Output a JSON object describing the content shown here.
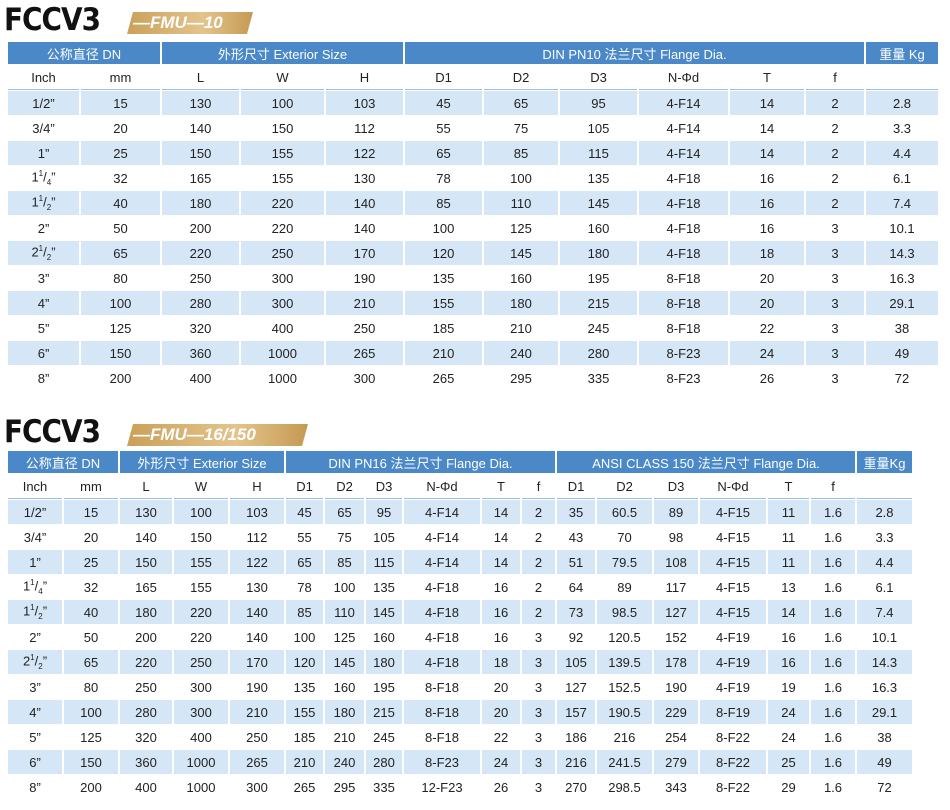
{
  "t1": {
    "model": "FCCV3",
    "variant": "—FMU—10",
    "groups": [
      "公称直径 DN",
      "外形尺寸 Exterior Size",
      "DIN PN10 法兰尺寸 Flange Dia.",
      "重量 Kg"
    ],
    "sub": [
      "Inch",
      "mm",
      "L",
      "W",
      "H",
      "D1",
      "D2",
      "D3",
      "N-Φd",
      "T",
      "f",
      ""
    ],
    "rows": [
      [
        "1/2”",
        "15",
        "130",
        "100",
        "103",
        "45",
        "65",
        "95",
        "4-F14",
        "14",
        "2",
        "2.8"
      ],
      [
        "3/4”",
        "20",
        "140",
        "150",
        "112",
        "55",
        "75",
        "105",
        "4-F14",
        "14",
        "2",
        "3.3"
      ],
      [
        "1”",
        "25",
        "150",
        "155",
        "122",
        "65",
        "85",
        "115",
        "4-F14",
        "14",
        "2",
        "4.4"
      ],
      [
        "1 1/4”",
        "32",
        "165",
        "155",
        "130",
        "78",
        "100",
        "135",
        "4-F18",
        "16",
        "2",
        "6.1"
      ],
      [
        "1 1/2”",
        "40",
        "180",
        "220",
        "140",
        "85",
        "110",
        "145",
        "4-F18",
        "16",
        "2",
        "7.4"
      ],
      [
        "2”",
        "50",
        "200",
        "220",
        "140",
        "100",
        "125",
        "160",
        "4-F18",
        "16",
        "3",
        "10.1"
      ],
      [
        "2 1/2”",
        "65",
        "220",
        "250",
        "170",
        "120",
        "145",
        "180",
        "4-F18",
        "18",
        "3",
        "14.3"
      ],
      [
        "3”",
        "80",
        "250",
        "300",
        "190",
        "135",
        "160",
        "195",
        "8-F18",
        "20",
        "3",
        "16.3"
      ],
      [
        "4”",
        "100",
        "280",
        "300",
        "210",
        "155",
        "180",
        "215",
        "8-F18",
        "20",
        "3",
        "29.1"
      ],
      [
        "5”",
        "125",
        "320",
        "400",
        "250",
        "185",
        "210",
        "245",
        "8-F18",
        "22",
        "3",
        "38"
      ],
      [
        "6”",
        "150",
        "360",
        "1000",
        "265",
        "210",
        "240",
        "280",
        "8-F23",
        "24",
        "3",
        "49"
      ],
      [
        "8”",
        "200",
        "400",
        "1000",
        "300",
        "265",
        "295",
        "335",
        "8-F23",
        "26",
        "3",
        "72"
      ]
    ]
  },
  "t2": {
    "model": "FCCV3",
    "variant": "—FMU—16/150",
    "groups": [
      "公称直径 DN",
      "外形尺寸 Exterior Size",
      "DIN PN16 法兰尺寸 Flange Dia.",
      "ANSI CLASS 150 法兰尺寸 Flange Dia.",
      "重量Kg"
    ],
    "sub": [
      "Inch",
      "mm",
      "L",
      "W",
      "H",
      "D1",
      "D2",
      "D3",
      "N-Φd",
      "T",
      "f",
      "D1",
      "D2",
      "D3",
      "N-Φd",
      "T",
      "f",
      ""
    ],
    "rows": [
      [
        "1/2”",
        "15",
        "130",
        "100",
        "103",
        "45",
        "65",
        "95",
        "4-F14",
        "14",
        "2",
        "35",
        "60.5",
        "89",
        "4-F15",
        "11",
        "1.6",
        "2.8"
      ],
      [
        "3/4”",
        "20",
        "140",
        "150",
        "112",
        "55",
        "75",
        "105",
        "4-F14",
        "14",
        "2",
        "43",
        "70",
        "98",
        "4-F15",
        "11",
        "1.6",
        "3.3"
      ],
      [
        "1”",
        "25",
        "150",
        "155",
        "122",
        "65",
        "85",
        "115",
        "4-F14",
        "14",
        "2",
        "51",
        "79.5",
        "108",
        "4-F15",
        "11",
        "1.6",
        "4.4"
      ],
      [
        "1 1/4”",
        "32",
        "165",
        "155",
        "130",
        "78",
        "100",
        "135",
        "4-F18",
        "16",
        "2",
        "64",
        "89",
        "117",
        "4-F15",
        "13",
        "1.6",
        "6.1"
      ],
      [
        "1 1/2”",
        "40",
        "180",
        "220",
        "140",
        "85",
        "110",
        "145",
        "4-F18",
        "16",
        "2",
        "73",
        "98.5",
        "127",
        "4-F15",
        "14",
        "1.6",
        "7.4"
      ],
      [
        "2”",
        "50",
        "200",
        "220",
        "140",
        "100",
        "125",
        "160",
        "4-F18",
        "16",
        "3",
        "92",
        "120.5",
        "152",
        "4-F19",
        "16",
        "1.6",
        "10.1"
      ],
      [
        "2 1/2”",
        "65",
        "220",
        "250",
        "170",
        "120",
        "145",
        "180",
        "4-F18",
        "18",
        "3",
        "105",
        "139.5",
        "178",
        "4-F19",
        "16",
        "1.6",
        "14.3"
      ],
      [
        "3”",
        "80",
        "250",
        "300",
        "190",
        "135",
        "160",
        "195",
        "8-F18",
        "20",
        "3",
        "127",
        "152.5",
        "190",
        "4-F19",
        "19",
        "1.6",
        "16.3"
      ],
      [
        "4”",
        "100",
        "280",
        "300",
        "210",
        "155",
        "180",
        "215",
        "8-F18",
        "20",
        "3",
        "157",
        "190.5",
        "229",
        "8-F19",
        "24",
        "1.6",
        "29.1"
      ],
      [
        "5”",
        "125",
        "320",
        "400",
        "250",
        "185",
        "210",
        "245",
        "8-F18",
        "22",
        "3",
        "186",
        "216",
        "254",
        "8-F22",
        "24",
        "1.6",
        "38"
      ],
      [
        "6”",
        "150",
        "360",
        "1000",
        "265",
        "210",
        "240",
        "280",
        "8-F23",
        "24",
        "3",
        "216",
        "241.5",
        "279",
        "8-F22",
        "25",
        "1.6",
        "49"
      ],
      [
        "8”",
        "200",
        "400",
        "1000",
        "300",
        "265",
        "295",
        "335",
        "12-F23",
        "26",
        "3",
        "270",
        "298.5",
        "343",
        "8-F22",
        "29",
        "1.6",
        "72"
      ]
    ]
  }
}
